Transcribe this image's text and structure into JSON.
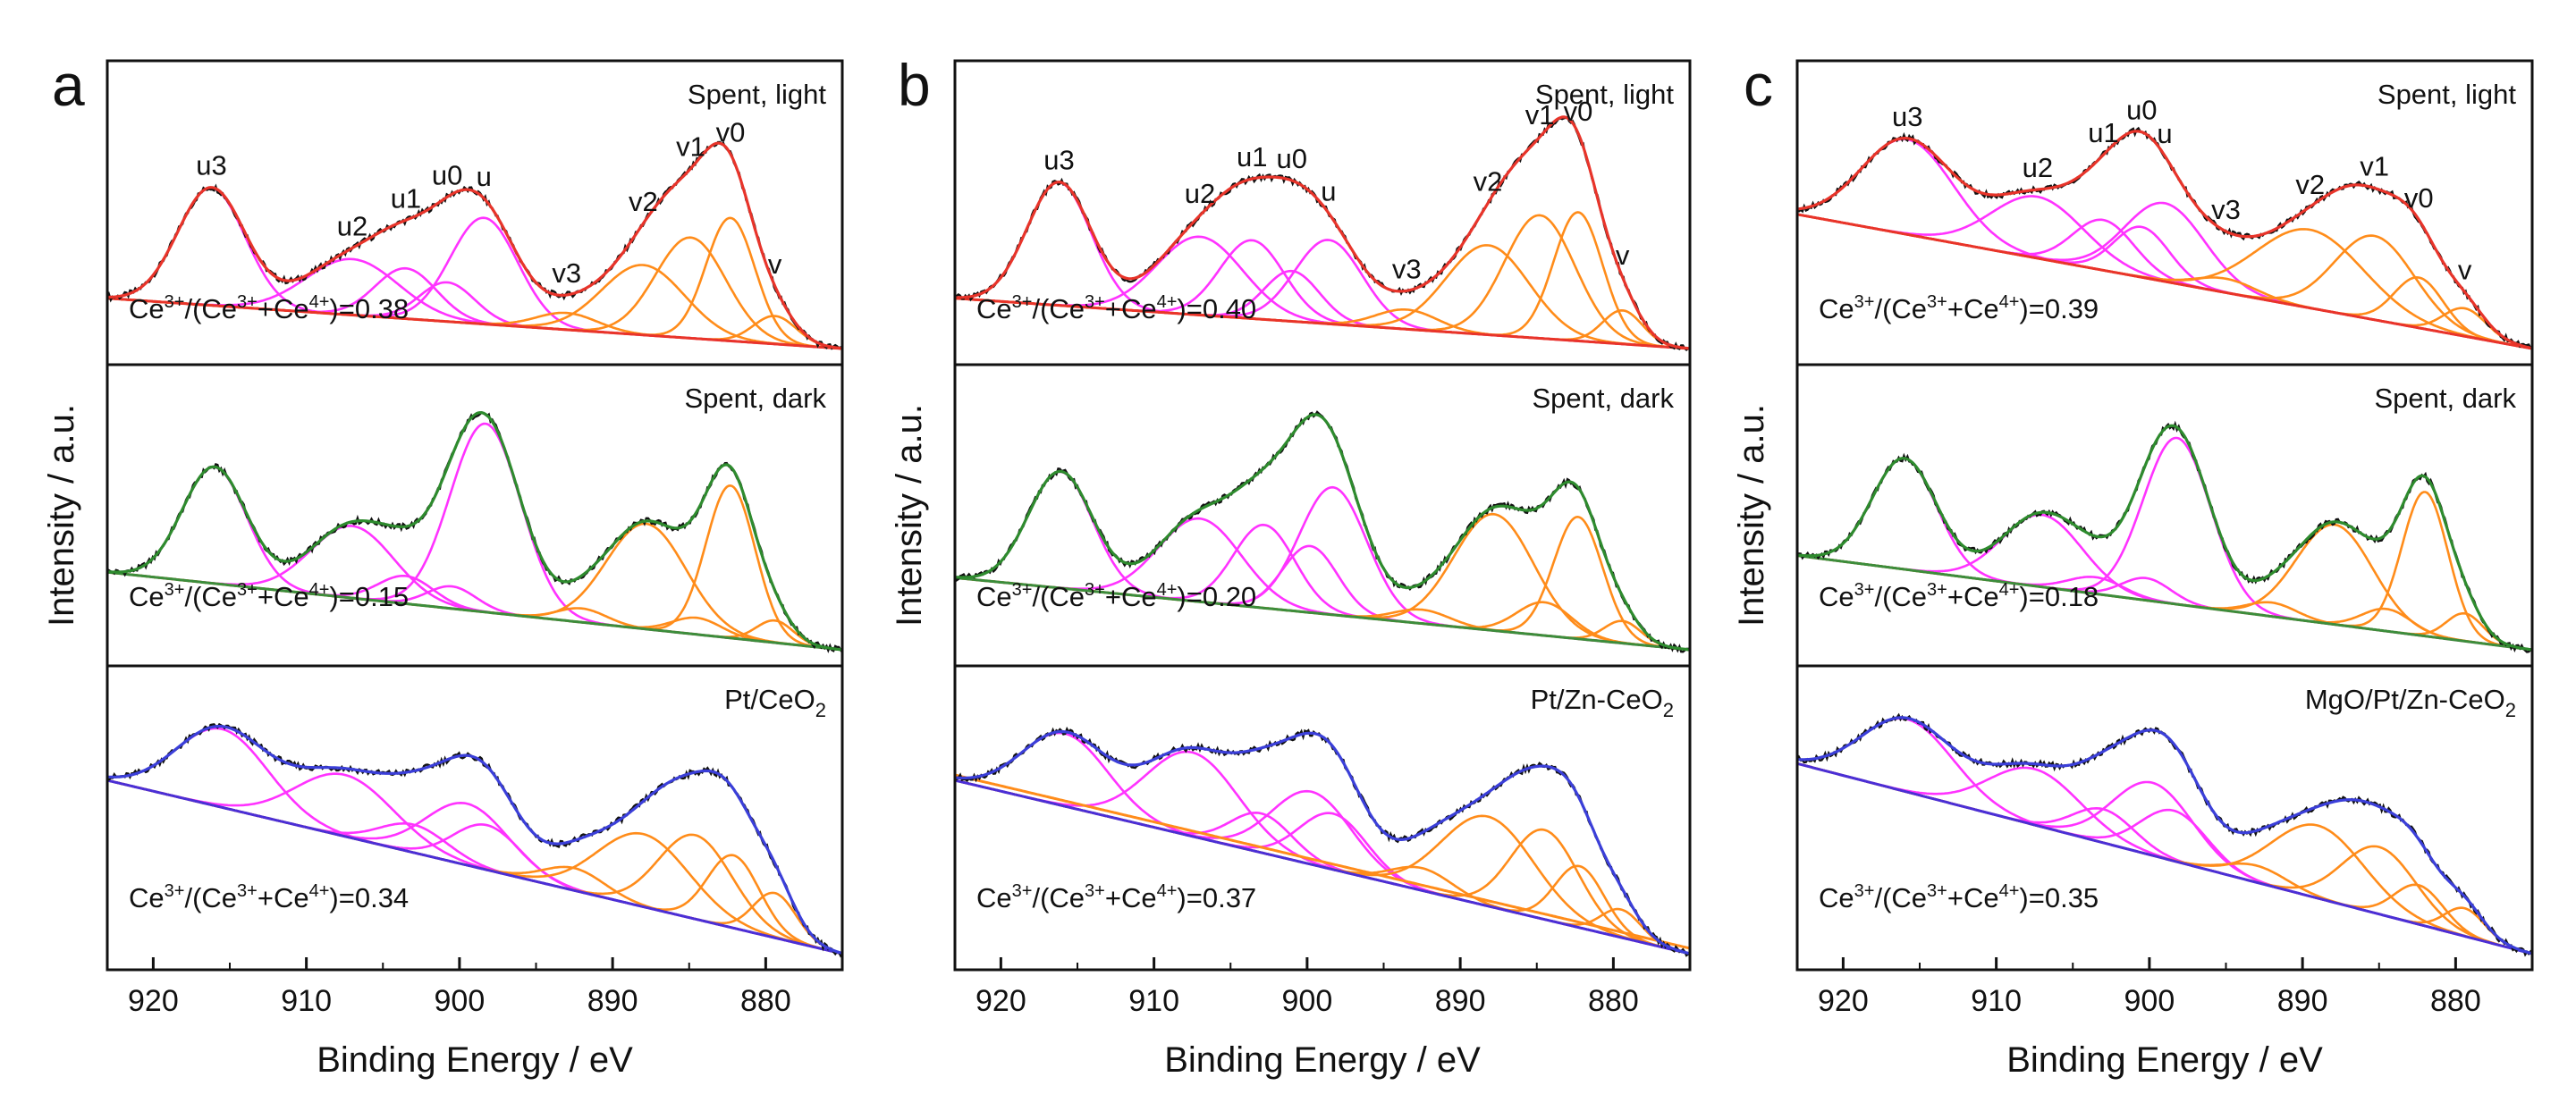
{
  "figure": {
    "x_label": "Binding Energy / eV",
    "y_label": "Intensity / a.u.",
    "ratio_prefix": "Ce",
    "colors": {
      "data": "#111111",
      "u_component": "#ff33ff",
      "v_component": "#ff8c1a",
      "envelope_light": "#e8342a",
      "envelope_dark": "#2e8b2e",
      "envelope_fresh": "#3b3fd9",
      "background_light": "#e8342a",
      "background_dark": "#3c8d3c",
      "background_fresh_a": "#4a2fd6",
      "background_fresh_b": "#ff8c1a",
      "background_fresh_c": "#4a2fd6"
    }
  },
  "chart_data": [
    {
      "type": "line",
      "panel": "a",
      "xlim": [
        923,
        875
      ],
      "x_ticks": [
        920,
        910,
        900,
        890,
        880
      ],
      "x_tick_labels": [
        "920",
        "910",
        "900",
        "890",
        "880"
      ],
      "xlabel": "Binding Energy / eV",
      "ylabel": "Intensity / a.u.",
      "subplots": [
        {
          "label": "Spent, light",
          "ratio_text": "=0.38",
          "ratio": 0.38,
          "envelope": "red",
          "peak_labels": [
            "u3",
            "u2",
            "u1",
            "u0",
            "u",
            "v3",
            "v2",
            "v1",
            "v0",
            "v"
          ],
          "peaks": [
            {
              "name": "u3",
              "center": 916.2,
              "height": 0.42,
              "width": 2.2
            },
            {
              "name": "u2",
              "center": 907.0,
              "height": 0.2,
              "width": 3.0
            },
            {
              "name": "u1",
              "center": 903.5,
              "height": 0.18,
              "width": 2.0
            },
            {
              "name": "u0",
              "center": 900.8,
              "height": 0.14,
              "width": 1.8
            },
            {
              "name": "u",
              "center": 898.4,
              "height": 0.38,
              "width": 2.2
            },
            {
              "name": "v3",
              "center": 893.0,
              "height": 0.06,
              "width": 2.0
            },
            {
              "name": "v2",
              "center": 888.0,
              "height": 0.25,
              "width": 2.7
            },
            {
              "name": "v1",
              "center": 884.9,
              "height": 0.36,
              "width": 2.3
            },
            {
              "name": "v0",
              "center": 882.3,
              "height": 0.44,
              "width": 1.6
            },
            {
              "name": "v",
              "center": 879.4,
              "height": 0.1,
              "width": 1.4
            }
          ],
          "background": {
            "start": 0.18,
            "end": 0.0
          }
        },
        {
          "label": "Spent, dark",
          "ratio_text": "=0.15",
          "ratio": 0.15,
          "envelope": "green",
          "peaks": [
            {
              "name": "u3",
              "center": 916.0,
              "height": 0.42,
              "width": 2.1
            },
            {
              "name": "u2",
              "center": 907.0,
              "height": 0.26,
              "width": 2.7
            },
            {
              "name": "u1",
              "center": 903.5,
              "height": 0.1,
              "width": 1.8
            },
            {
              "name": "u0",
              "center": 900.5,
              "height": 0.08,
              "width": 1.6
            },
            {
              "name": "u",
              "center": 898.3,
              "height": 0.68,
              "width": 2.3
            },
            {
              "name": "v3",
              "center": 892.0,
              "height": 0.05,
              "width": 1.6
            },
            {
              "name": "v2",
              "center": 887.8,
              "height": 0.38,
              "width": 2.6
            },
            {
              "name": "v1",
              "center": 884.5,
              "height": 0.06,
              "width": 1.6
            },
            {
              "name": "v0",
              "center": 882.3,
              "height": 0.55,
              "width": 1.6
            },
            {
              "name": "v",
              "center": 879.4,
              "height": 0.08,
              "width": 1.2
            }
          ],
          "background": {
            "start": 0.28,
            "end": 0.0
          }
        },
        {
          "label": "Pt/CeO",
          "label_sub": "2",
          "ratio_text": "=0.34",
          "ratio": 0.34,
          "envelope": "blue",
          "peaks": [
            {
              "name": "u3",
              "center": 915.5,
              "height": 0.28,
              "width": 3.0
            },
            {
              "name": "u2",
              "center": 907.5,
              "height": 0.22,
              "width": 3.2
            },
            {
              "name": "u1",
              "center": 903.0,
              "height": 0.1,
              "width": 2.2
            },
            {
              "name": "u0",
              "center": 899.5,
              "height": 0.22,
              "width": 2.7
            },
            {
              "name": "u",
              "center": 898.2,
              "height": 0.16,
              "width": 2.2
            },
            {
              "name": "v3",
              "center": 892.5,
              "height": 0.08,
              "width": 2.0
            },
            {
              "name": "v2",
              "center": 888.0,
              "height": 0.26,
              "width": 3.0
            },
            {
              "name": "v1",
              "center": 884.6,
              "height": 0.3,
              "width": 2.4
            },
            {
              "name": "v0",
              "center": 882.1,
              "height": 0.26,
              "width": 1.7
            },
            {
              "name": "v",
              "center": 879.4,
              "height": 0.16,
              "width": 1.4
            }
          ],
          "background": {
            "start": 0.62,
            "end": 0.0
          }
        }
      ]
    },
    {
      "type": "line",
      "panel": "b",
      "xlim": [
        923,
        875
      ],
      "x_ticks": [
        920,
        910,
        900,
        890,
        880
      ],
      "x_tick_labels": [
        "920",
        "910",
        "900",
        "890",
        "880"
      ],
      "xlabel": "Binding Energy / eV",
      "ylabel": "Intensity / a.u.",
      "subplots": [
        {
          "label": "Spent, light",
          "ratio_text": "=0.40",
          "ratio": 0.4,
          "envelope": "red",
          "peak_labels": [
            "u3",
            "u2",
            "u1",
            "u0",
            "u",
            "v3",
            "v2",
            "v1",
            "v0",
            "v"
          ],
          "peaks": [
            {
              "name": "u3",
              "center": 916.2,
              "height": 0.44,
              "width": 2.1
            },
            {
              "name": "u2",
              "center": 907.0,
              "height": 0.28,
              "width": 2.8
            },
            {
              "name": "u1",
              "center": 903.6,
              "height": 0.28,
              "width": 2.1
            },
            {
              "name": "u0",
              "center": 901.0,
              "height": 0.18,
              "width": 1.8
            },
            {
              "name": "u",
              "center": 898.6,
              "height": 0.3,
              "width": 2.2
            },
            {
              "name": "v3",
              "center": 893.5,
              "height": 0.07,
              "width": 2.0
            },
            {
              "name": "v2",
              "center": 888.2,
              "height": 0.32,
              "width": 2.7
            },
            {
              "name": "v1",
              "center": 884.8,
              "height": 0.44,
              "width": 2.3
            },
            {
              "name": "v0",
              "center": 882.3,
              "height": 0.46,
              "width": 1.6
            },
            {
              "name": "v",
              "center": 879.4,
              "height": 0.12,
              "width": 1.3
            }
          ],
          "background": {
            "start": 0.18,
            "end": 0.0
          }
        },
        {
          "label": "Spent, dark",
          "ratio_text": "=0.20",
          "ratio": 0.2,
          "envelope": "green",
          "peaks": [
            {
              "name": "u3",
              "center": 916.1,
              "height": 0.42,
              "width": 2.1
            },
            {
              "name": "u2",
              "center": 907.0,
              "height": 0.3,
              "width": 2.7
            },
            {
              "name": "u1",
              "center": 902.8,
              "height": 0.3,
              "width": 2.0
            },
            {
              "name": "u0",
              "center": 899.8,
              "height": 0.24,
              "width": 1.8
            },
            {
              "name": "u",
              "center": 898.3,
              "height": 0.46,
              "width": 2.2
            },
            {
              "name": "v3",
              "center": 892.5,
              "height": 0.05,
              "width": 1.8
            },
            {
              "name": "v2",
              "center": 887.8,
              "height": 0.42,
              "width": 2.6
            },
            {
              "name": "v1",
              "center": 884.5,
              "height": 0.12,
              "width": 1.8
            },
            {
              "name": "v0",
              "center": 882.3,
              "height": 0.44,
              "width": 1.6
            },
            {
              "name": "v",
              "center": 879.4,
              "height": 0.08,
              "width": 1.2
            }
          ],
          "background": {
            "start": 0.26,
            "end": 0.0
          }
        },
        {
          "label": "Pt/Zn-CeO",
          "label_sub": "2",
          "ratio_text": "=0.37",
          "ratio": 0.37,
          "envelope": "blue",
          "peaks": [
            {
              "name": "u3",
              "center": 915.8,
              "height": 0.26,
              "width": 2.8
            },
            {
              "name": "u2",
              "center": 907.5,
              "height": 0.3,
              "width": 3.0
            },
            {
              "name": "u1",
              "center": 903.0,
              "height": 0.14,
              "width": 2.0
            },
            {
              "name": "u0",
              "center": 899.7,
              "height": 0.26,
              "width": 2.6
            },
            {
              "name": "u",
              "center": 898.3,
              "height": 0.2,
              "width": 2.2
            },
            {
              "name": "v3",
              "center": 892.5,
              "height": 0.08,
              "width": 2.0
            },
            {
              "name": "v2",
              "center": 888.2,
              "height": 0.32,
              "width": 3.0
            },
            {
              "name": "v1",
              "center": 884.5,
              "height": 0.32,
              "width": 2.2
            },
            {
              "name": "v0",
              "center": 882.2,
              "height": 0.22,
              "width": 1.6
            },
            {
              "name": "v",
              "center": 879.5,
              "height": 0.1,
              "width": 1.3
            }
          ],
          "background": {
            "start": 0.62,
            "end": 0.0
          }
        }
      ]
    },
    {
      "type": "line",
      "panel": "c",
      "xlim": [
        923,
        875
      ],
      "x_ticks": [
        920,
        910,
        900,
        890,
        880
      ],
      "x_tick_labels": [
        "920",
        "910",
        "900",
        "890",
        "880"
      ],
      "xlabel": "Binding Energy / eV",
      "ylabel": "Intensity / a.u.",
      "subplots": [
        {
          "label": "Spent, light",
          "ratio_text": "=0.39",
          "ratio": 0.39,
          "envelope": "red",
          "peak_labels": [
            "u3",
            "u2",
            "u1",
            "u0",
            "u",
            "v3",
            "v2",
            "v1",
            "v0",
            "v"
          ],
          "peaks": [
            {
              "name": "u3",
              "center": 915.8,
              "height": 0.34,
              "width": 3.0
            },
            {
              "name": "u2",
              "center": 907.3,
              "height": 0.22,
              "width": 3.0
            },
            {
              "name": "u1",
              "center": 903.0,
              "height": 0.18,
              "width": 2.0
            },
            {
              "name": "u0",
              "center": 900.5,
              "height": 0.18,
              "width": 1.8
            },
            {
              "name": "u",
              "center": 899.0,
              "height": 0.28,
              "width": 2.6
            },
            {
              "name": "v3",
              "center": 895.0,
              "height": 0.05,
              "width": 2.0
            },
            {
              "name": "v2",
              "center": 889.5,
              "height": 0.28,
              "width": 3.5
            },
            {
              "name": "v1",
              "center": 885.3,
              "height": 0.3,
              "width": 2.6
            },
            {
              "name": "v0",
              "center": 882.4,
              "height": 0.18,
              "width": 1.6
            },
            {
              "name": "v",
              "center": 879.4,
              "height": 0.1,
              "width": 1.4
            }
          ],
          "background": {
            "start": 0.48,
            "end": 0.0
          }
        },
        {
          "label": "Spent, dark",
          "ratio_text": "=0.18",
          "ratio": 0.18,
          "envelope": "green",
          "peaks": [
            {
              "name": "u3",
              "center": 916.0,
              "height": 0.4,
              "width": 2.1
            },
            {
              "name": "u2",
              "center": 907.0,
              "height": 0.26,
              "width": 2.6
            },
            {
              "name": "u1",
              "center": 903.5,
              "height": 0.06,
              "width": 1.8
            },
            {
              "name": "u0",
              "center": 900.2,
              "height": 0.08,
              "width": 1.6
            },
            {
              "name": "u",
              "center": 898.2,
              "height": 0.6,
              "width": 2.2
            },
            {
              "name": "v3",
              "center": 892.0,
              "height": 0.05,
              "width": 1.6
            },
            {
              "name": "v2",
              "center": 887.9,
              "height": 0.36,
              "width": 2.5
            },
            {
              "name": "v1",
              "center": 884.5,
              "height": 0.08,
              "width": 1.6
            },
            {
              "name": "v0",
              "center": 882.0,
              "height": 0.52,
              "width": 1.5
            },
            {
              "name": "v",
              "center": 879.4,
              "height": 0.1,
              "width": 1.2
            }
          ],
          "background": {
            "start": 0.34,
            "end": 0.0
          }
        },
        {
          "label": "MgO/Pt/Zn-CeO",
          "label_sub": "2",
          "ratio_text": "=0.35",
          "ratio": 0.35,
          "envelope": "blue",
          "peaks": [
            {
              "name": "u3",
              "center": 915.8,
              "height": 0.26,
              "width": 3.0
            },
            {
              "name": "u2",
              "center": 907.5,
              "height": 0.2,
              "width": 3.0
            },
            {
              "name": "u1",
              "center": 903.0,
              "height": 0.12,
              "width": 2.0
            },
            {
              "name": "u0",
              "center": 899.8,
              "height": 0.26,
              "width": 2.6
            },
            {
              "name": "u",
              "center": 898.4,
              "height": 0.18,
              "width": 2.2
            },
            {
              "name": "v3",
              "center": 893.0,
              "height": 0.06,
              "width": 2.0
            },
            {
              "name": "v2",
              "center": 889.0,
              "height": 0.26,
              "width": 3.0
            },
            {
              "name": "v1",
              "center": 885.0,
              "height": 0.24,
              "width": 2.4
            },
            {
              "name": "v0",
              "center": 882.4,
              "height": 0.14,
              "width": 1.6
            },
            {
              "name": "v",
              "center": 879.4,
              "height": 0.1,
              "width": 1.3
            }
          ],
          "background": {
            "start": 0.68,
            "end": 0.0
          }
        }
      ]
    }
  ]
}
